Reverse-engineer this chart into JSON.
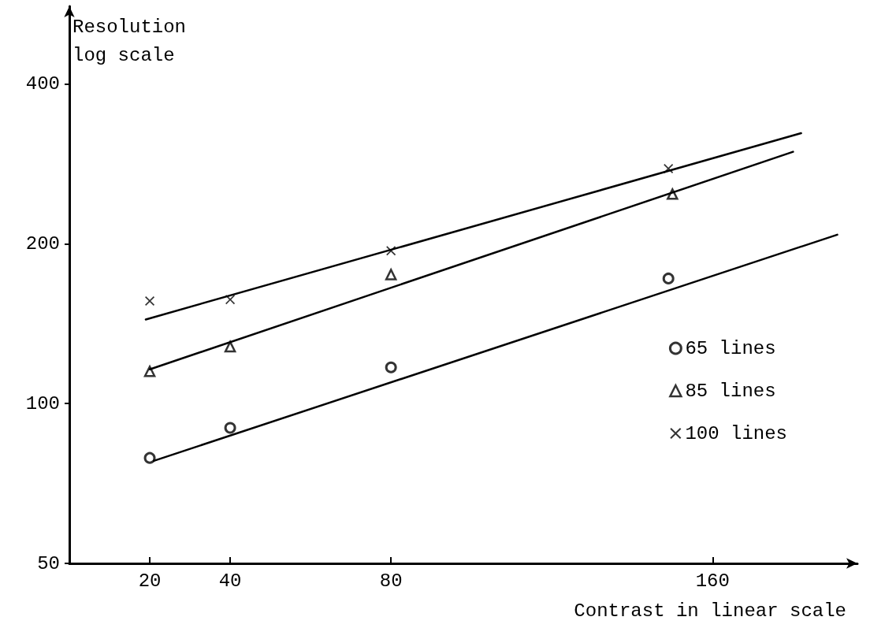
{
  "chart_data": {
    "type": "scatter",
    "xlabel": "Contrast in linear scale",
    "ylabel": "Resolution\nlog scale",
    "xlim": [
      0,
      196
    ],
    "xticks": [
      20,
      40,
      80,
      160
    ],
    "ylim": [
      50,
      560
    ],
    "yticks": [
      50,
      100,
      200,
      400
    ],
    "log": "y",
    "legend": "right",
    "series": [
      {
        "name": "65 lines",
        "marker": "circle",
        "color": "#000000",
        "x": [
          20,
          40,
          80,
          149
        ],
        "values": [
          79,
          90,
          117,
          172
        ]
      },
      {
        "name": "85 lines",
        "marker": "triangle",
        "color": "#000000",
        "x": [
          20,
          40,
          80,
          150
        ],
        "values": [
          115,
          128,
          175,
          248
        ]
      },
      {
        "name": "100 lines",
        "marker": "cross",
        "color": "#000000",
        "x": [
          20,
          40,
          80,
          149
        ],
        "values": [
          156,
          157,
          194,
          277
        ]
      },
      {
        "type": "line",
        "marker": "none",
        "line_style": "solid",
        "color": "#000000",
        "x": [
          21,
          191
        ],
        "values": [
          78,
          208
        ]
      },
      {
        "type": "line",
        "marker": "none",
        "line_style": "solid",
        "color": "#000000",
        "x": [
          20,
          180
        ],
        "values": [
          116,
          298
        ]
      },
      {
        "type": "line",
        "marker": "none",
        "line_style": "solid",
        "color": "#000000",
        "x": [
          19,
          182
        ],
        "values": [
          144,
          323
        ]
      }
    ]
  }
}
